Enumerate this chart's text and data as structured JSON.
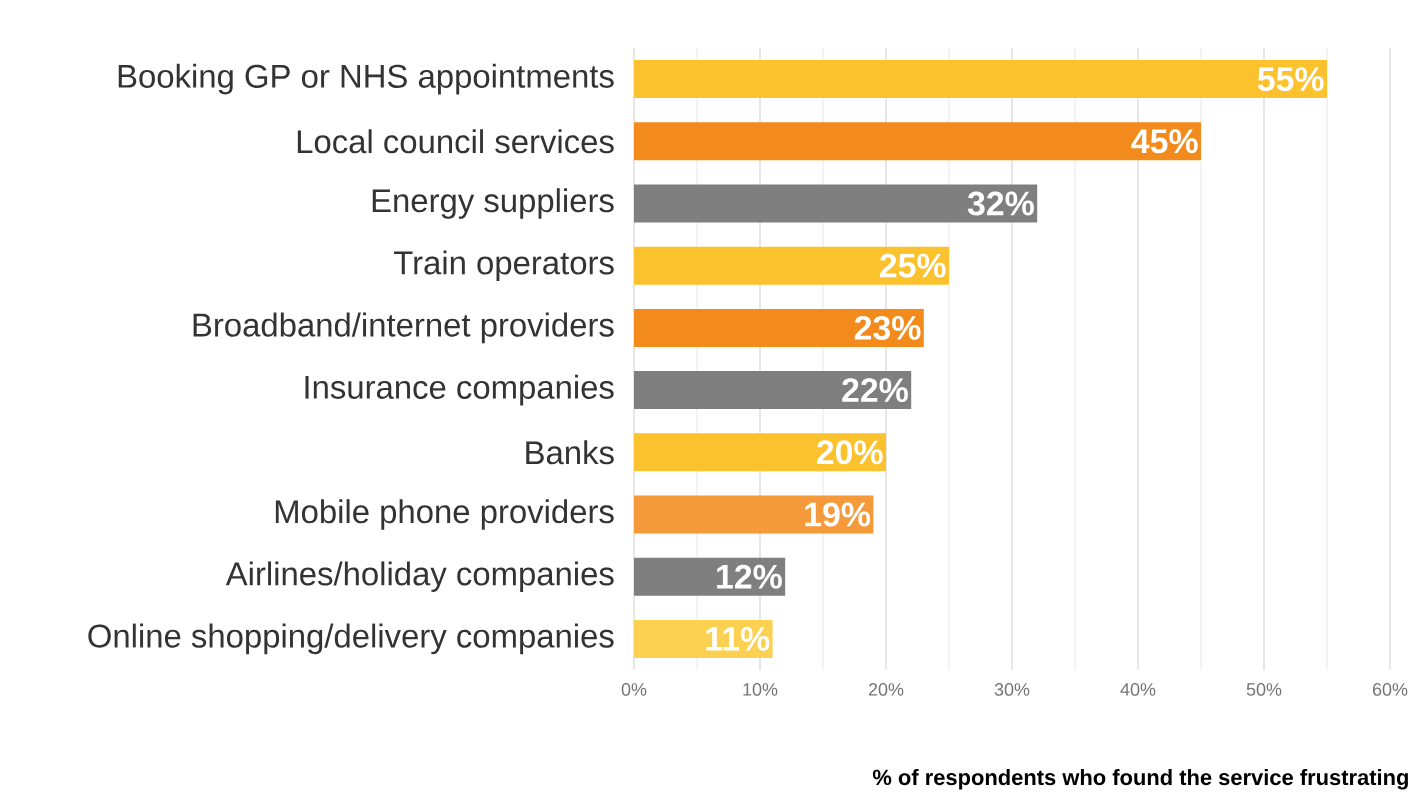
{
  "chart_data": {
    "type": "bar",
    "orientation": "horizontal",
    "xlabel": "% of respondents who found the service frustrating",
    "categories": [
      "Booking GP or NHS appointments",
      "Local council services",
      "Energy suppliers",
      "Train operators",
      "Broadband/internet providers",
      "Insurance companies",
      "Banks",
      "Mobile phone providers",
      "Airlines/holiday companies",
      "Online shopping/delivery companies"
    ],
    "values": [
      55,
      45,
      32,
      25,
      23,
      22,
      20,
      19,
      12,
      11
    ],
    "colors": [
      "#fcc22d",
      "#f28a1c",
      "#7f7f7f",
      "#fcc22d",
      "#f28a1c",
      "#7f7f7f",
      "#fcc22d",
      "#f59a3a",
      "#7f7f7f",
      "#fcd050"
    ],
    "value_labels": [
      "55%",
      "45%",
      "32%",
      "25%",
      "23%",
      "22%",
      "20%",
      "19%",
      "12%",
      "11%"
    ],
    "xlim": [
      0,
      60
    ],
    "xticks": [
      {
        "value": 0,
        "label": "0%"
      },
      {
        "value": 10,
        "label": "10%"
      },
      {
        "value": 20,
        "label": "20%"
      },
      {
        "value": 30,
        "label": "30%"
      },
      {
        "value": 40,
        "label": "40%"
      },
      {
        "value": 50,
        "label": "50%"
      },
      {
        "value": 60,
        "label": "60%"
      }
    ],
    "grid": "x"
  }
}
